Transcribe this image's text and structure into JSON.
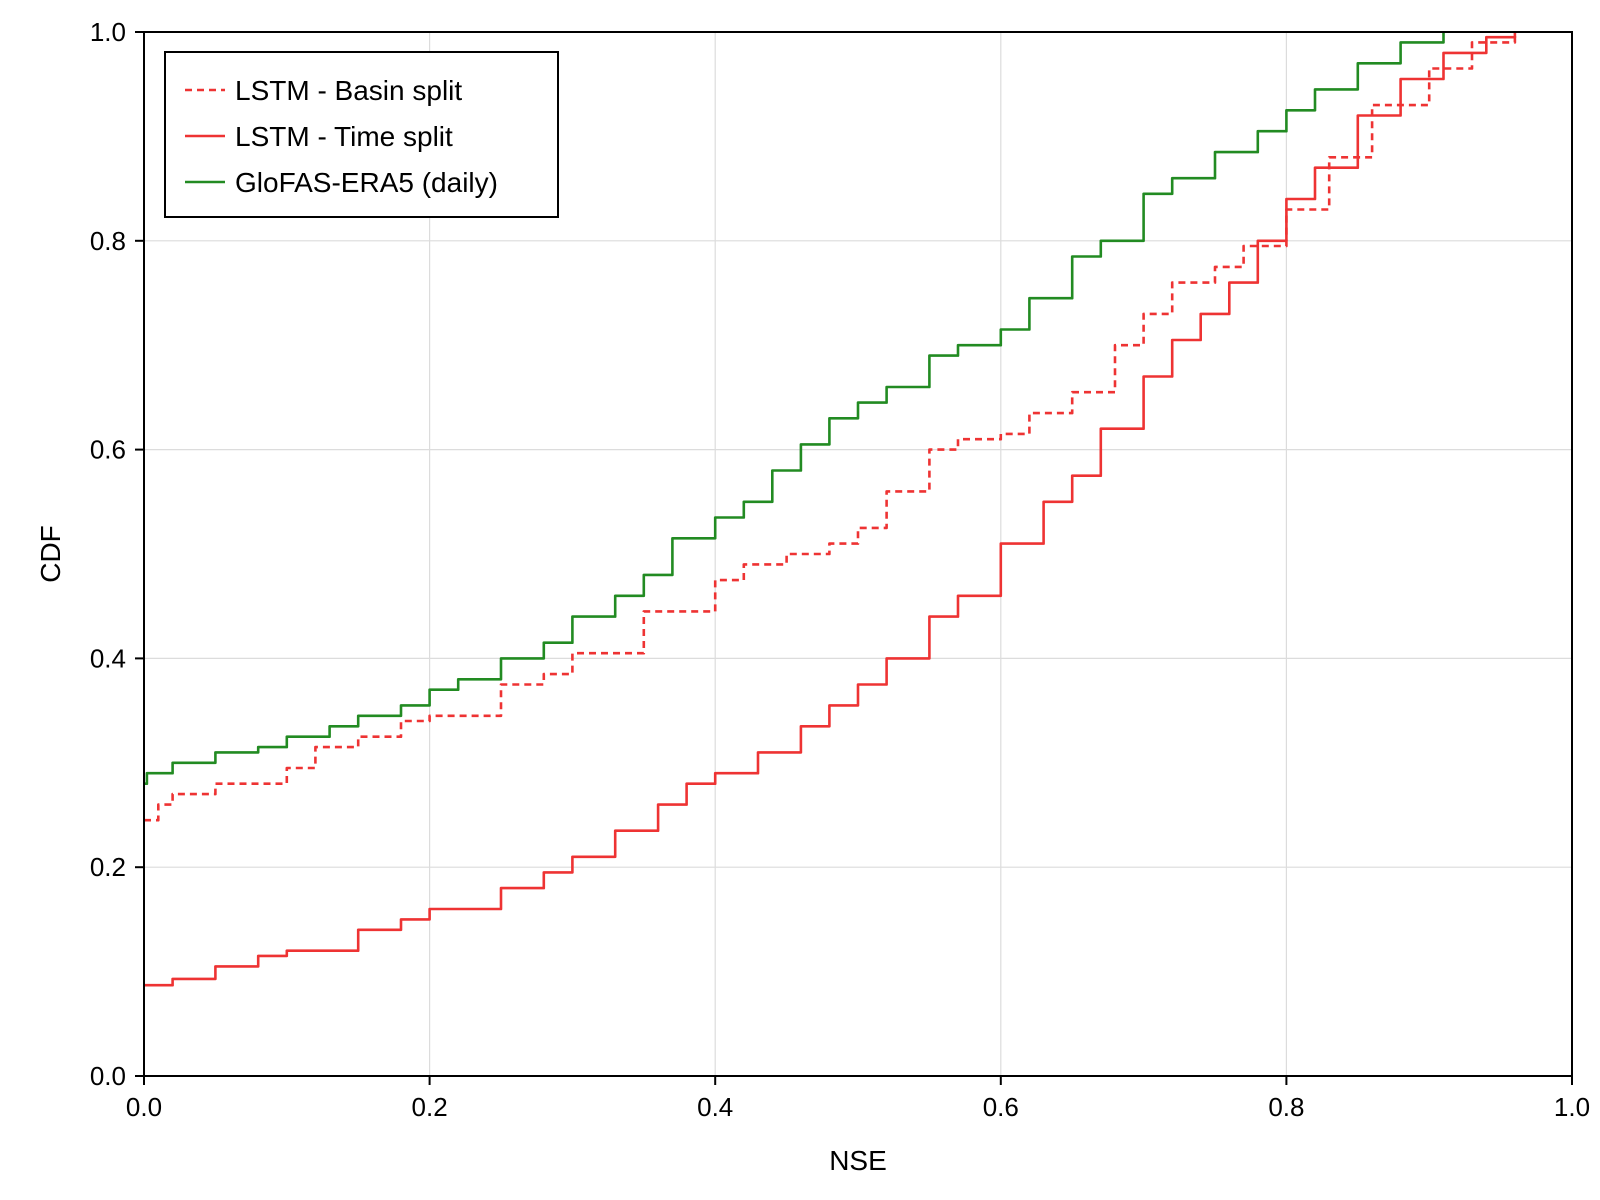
{
  "chart_data": {
    "type": "line",
    "title": "",
    "xlabel": "NSE",
    "ylabel": "CDF",
    "xlim": [
      0.0,
      1.0
    ],
    "ylim": [
      0.0,
      1.0
    ],
    "x_ticks": [
      0.0,
      0.2,
      0.4,
      0.6,
      0.8,
      1.0
    ],
    "y_ticks": [
      0.0,
      0.2,
      0.4,
      0.6,
      0.8,
      1.0
    ],
    "x_tick_labels": [
      "0.0",
      "0.2",
      "0.4",
      "0.6",
      "0.8",
      "1.0"
    ],
    "y_tick_labels": [
      "0.0",
      "0.2",
      "0.4",
      "0.6",
      "0.8",
      "1.0"
    ],
    "grid": true,
    "legend_position": "top-left",
    "series": [
      {
        "name": "LSTM - Basin split",
        "color": "#ee3333",
        "style": "dashed",
        "points": [
          [
            0.0,
            0.245
          ],
          [
            0.01,
            0.26
          ],
          [
            0.02,
            0.27
          ],
          [
            0.05,
            0.28
          ],
          [
            0.1,
            0.295
          ],
          [
            0.12,
            0.315
          ],
          [
            0.15,
            0.325
          ],
          [
            0.18,
            0.34
          ],
          [
            0.2,
            0.345
          ],
          [
            0.25,
            0.375
          ],
          [
            0.28,
            0.385
          ],
          [
            0.3,
            0.405
          ],
          [
            0.35,
            0.445
          ],
          [
            0.4,
            0.475
          ],
          [
            0.42,
            0.49
          ],
          [
            0.45,
            0.5
          ],
          [
            0.48,
            0.51
          ],
          [
            0.5,
            0.525
          ],
          [
            0.52,
            0.56
          ],
          [
            0.55,
            0.6
          ],
          [
            0.57,
            0.61
          ],
          [
            0.6,
            0.615
          ],
          [
            0.62,
            0.635
          ],
          [
            0.65,
            0.655
          ],
          [
            0.68,
            0.7
          ],
          [
            0.7,
            0.73
          ],
          [
            0.72,
            0.76
          ],
          [
            0.75,
            0.775
          ],
          [
            0.77,
            0.795
          ],
          [
            0.8,
            0.83
          ],
          [
            0.83,
            0.88
          ],
          [
            0.86,
            0.93
          ],
          [
            0.9,
            0.965
          ],
          [
            0.93,
            0.99
          ],
          [
            0.96,
            1.0
          ]
        ]
      },
      {
        "name": "LSTM - Time split",
        "color": "#ee3333",
        "style": "solid",
        "points": [
          [
            0.0,
            0.087
          ],
          [
            0.02,
            0.093
          ],
          [
            0.05,
            0.105
          ],
          [
            0.08,
            0.115
          ],
          [
            0.1,
            0.12
          ],
          [
            0.15,
            0.14
          ],
          [
            0.18,
            0.15
          ],
          [
            0.2,
            0.16
          ],
          [
            0.25,
            0.18
          ],
          [
            0.28,
            0.195
          ],
          [
            0.3,
            0.21
          ],
          [
            0.33,
            0.235
          ],
          [
            0.36,
            0.26
          ],
          [
            0.38,
            0.28
          ],
          [
            0.4,
            0.29
          ],
          [
            0.43,
            0.31
          ],
          [
            0.46,
            0.335
          ],
          [
            0.48,
            0.355
          ],
          [
            0.5,
            0.375
          ],
          [
            0.52,
            0.4
          ],
          [
            0.55,
            0.44
          ],
          [
            0.57,
            0.46
          ],
          [
            0.6,
            0.51
          ],
          [
            0.63,
            0.55
          ],
          [
            0.65,
            0.575
          ],
          [
            0.67,
            0.62
          ],
          [
            0.7,
            0.67
          ],
          [
            0.72,
            0.705
          ],
          [
            0.74,
            0.73
          ],
          [
            0.76,
            0.76
          ],
          [
            0.78,
            0.8
          ],
          [
            0.8,
            0.84
          ],
          [
            0.82,
            0.87
          ],
          [
            0.85,
            0.92
          ],
          [
            0.88,
            0.955
          ],
          [
            0.91,
            0.98
          ],
          [
            0.94,
            0.995
          ],
          [
            0.96,
            1.0
          ]
        ]
      },
      {
        "name": "GloFAS-ERA5 (daily)",
        "color": "#228b22",
        "style": "solid",
        "points": [
          [
            0.0,
            0.28
          ],
          [
            0.002,
            0.29
          ],
          [
            0.02,
            0.3
          ],
          [
            0.05,
            0.31
          ],
          [
            0.08,
            0.315
          ],
          [
            0.1,
            0.325
          ],
          [
            0.13,
            0.335
          ],
          [
            0.15,
            0.345
          ],
          [
            0.18,
            0.355
          ],
          [
            0.2,
            0.37
          ],
          [
            0.22,
            0.38
          ],
          [
            0.25,
            0.4
          ],
          [
            0.28,
            0.415
          ],
          [
            0.3,
            0.44
          ],
          [
            0.33,
            0.46
          ],
          [
            0.35,
            0.48
          ],
          [
            0.37,
            0.515
          ],
          [
            0.4,
            0.535
          ],
          [
            0.42,
            0.55
          ],
          [
            0.44,
            0.58
          ],
          [
            0.46,
            0.605
          ],
          [
            0.48,
            0.63
          ],
          [
            0.5,
            0.645
          ],
          [
            0.52,
            0.66
          ],
          [
            0.55,
            0.69
          ],
          [
            0.57,
            0.7
          ],
          [
            0.6,
            0.715
          ],
          [
            0.62,
            0.745
          ],
          [
            0.65,
            0.785
          ],
          [
            0.67,
            0.8
          ],
          [
            0.7,
            0.845
          ],
          [
            0.72,
            0.86
          ],
          [
            0.75,
            0.885
          ],
          [
            0.78,
            0.905
          ],
          [
            0.8,
            0.925
          ],
          [
            0.82,
            0.945
          ],
          [
            0.85,
            0.97
          ],
          [
            0.88,
            0.99
          ],
          [
            0.91,
            1.0
          ]
        ]
      }
    ]
  }
}
